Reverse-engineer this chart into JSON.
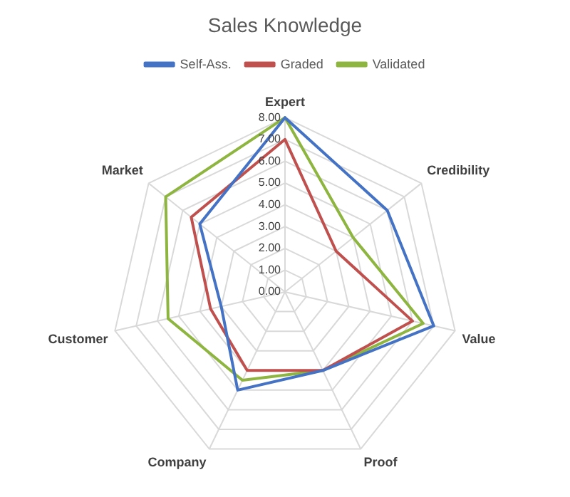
{
  "chart_data": {
    "type": "radar",
    "title": "Sales Knowledge",
    "categories": [
      "Expert",
      "Credibility",
      "Value",
      "Proof",
      "Company",
      "Customer",
      "Market"
    ],
    "series": [
      {
        "name": "Self-Ass.",
        "color": "#4472c4",
        "values": [
          8,
          6,
          7,
          4,
          5,
          3,
          5
        ]
      },
      {
        "name": "Graded",
        "color": "#c0504d",
        "values": [
          7,
          3,
          6,
          4,
          4,
          3.5,
          5.5
        ]
      },
      {
        "name": "Validated",
        "color": "#8db53f",
        "values": [
          8,
          4,
          6.5,
          4,
          4.5,
          5.5,
          7
        ]
      }
    ],
    "ylim": [
      0,
      8
    ],
    "yticks": [
      {
        "value": 0,
        "label": "0.00"
      },
      {
        "value": 1,
        "label": "1.00"
      },
      {
        "value": 2,
        "label": "2.00"
      },
      {
        "value": 3,
        "label": "3.00"
      },
      {
        "value": 4,
        "label": "4.00"
      },
      {
        "value": 5,
        "label": "5.00"
      },
      {
        "value": 6,
        "label": "6.00"
      },
      {
        "value": 7,
        "label": "7.00"
      },
      {
        "value": 8,
        "label": "8.00"
      }
    ],
    "grid": true,
    "legend": "top",
    "marker": "none"
  }
}
